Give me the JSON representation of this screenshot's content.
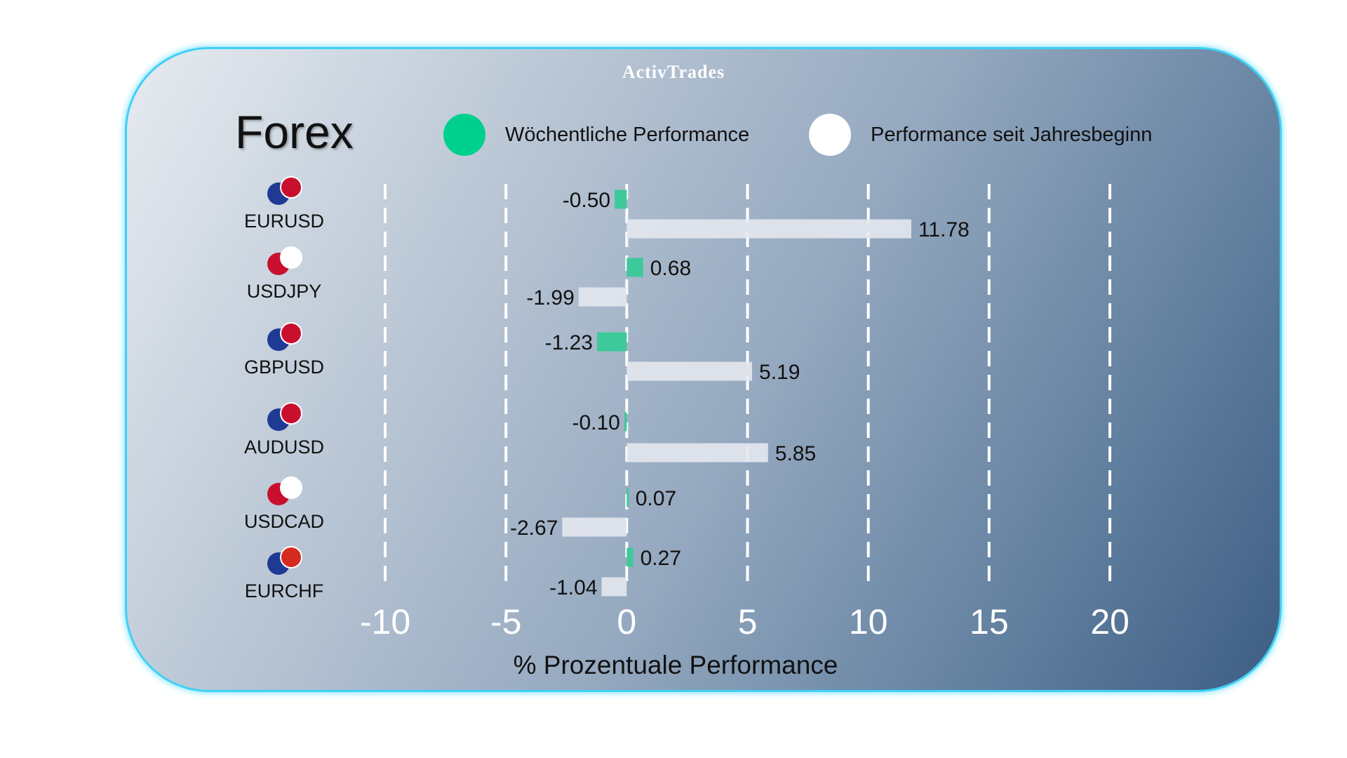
{
  "logo": "ActivTrades",
  "title": "Forex",
  "colors": {
    "weekly": "#3ec99a",
    "ytd": "#e4e8ee",
    "legend_weekly": "#00d08e",
    "legend_ytd": "#ffffff"
  },
  "chart_data": {
    "type": "bar",
    "orientation": "horizontal",
    "categories": [
      "EURUSD",
      "USDJPY",
      "GBPUSD",
      "AUDUSD",
      "USDCAD",
      "EURCHF"
    ],
    "series": [
      {
        "name": "Wöchentliche Performance",
        "values": [
          -0.5,
          0.68,
          -1.23,
          -0.1,
          0.07,
          0.27
        ]
      },
      {
        "name": "Performance seit Jahresbeginn",
        "values": [
          11.78,
          -1.99,
          5.19,
          5.85,
          -2.67,
          -1.04
        ]
      }
    ],
    "xlabel": "% Prozentuale Performance",
    "xlim": [
      -10,
      20
    ],
    "xticks": [
      "-10",
      "-5",
      "0",
      "5",
      "10",
      "15",
      "20"
    ],
    "grid": "vertical dashed",
    "legend": "top"
  }
}
